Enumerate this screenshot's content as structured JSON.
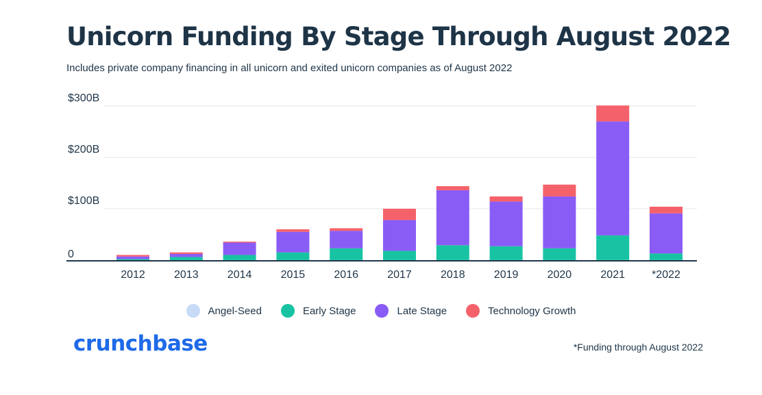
{
  "title": "Unicorn Funding By Stage Through August 2022",
  "subtitle": "Includes private company financing in all unicorn and exited unicorn companies as of August 2022",
  "brand": "crunchbase",
  "footnote": "*Funding through August 2022",
  "colors": {
    "angel_seed": "#c7dbf6",
    "early_stage": "#17c3a2",
    "late_stage": "#8a5cf6",
    "technology_growth": "#f5616a",
    "axis": "#1e3447",
    "grid": "#e4e6ea"
  },
  "chart_data": {
    "type": "bar",
    "stacked": true,
    "title": "Unicorn Funding By Stage Through August 2022",
    "subtitle": "Includes private company financing in all unicorn and exited unicorn companies as of August 2022",
    "xlabel": "",
    "ylabel": "",
    "ylim": [
      0,
      300
    ],
    "yticks": [
      0,
      100,
      200,
      300
    ],
    "ytick_labels": [
      "0",
      "$100B",
      "$200B",
      "$300B"
    ],
    "grid": true,
    "legend_position": "bottom",
    "categories": [
      "2012",
      "2013",
      "2014",
      "2015",
      "2016",
      "2017",
      "2018",
      "2019",
      "2020",
      "2021",
      "*2022"
    ],
    "series": [
      {
        "name": "Angel-Seed",
        "values": [
          0.1,
          0.1,
          0.1,
          0.1,
          0.1,
          0.1,
          0.1,
          0.1,
          0.1,
          0.2,
          0.1
        ]
      },
      {
        "name": "Early Stage",
        "values": [
          2,
          6,
          10,
          15,
          23,
          18,
          29,
          27,
          23,
          48,
          13
        ]
      },
      {
        "name": "Late Stage",
        "values": [
          5,
          6,
          24,
          40,
          34,
          60,
          107,
          87,
          101,
          222,
          78
        ]
      },
      {
        "name": "Technology Growth",
        "values": [
          3,
          3,
          2,
          5,
          5,
          22,
          8,
          10,
          23,
          31,
          13
        ]
      }
    ]
  }
}
